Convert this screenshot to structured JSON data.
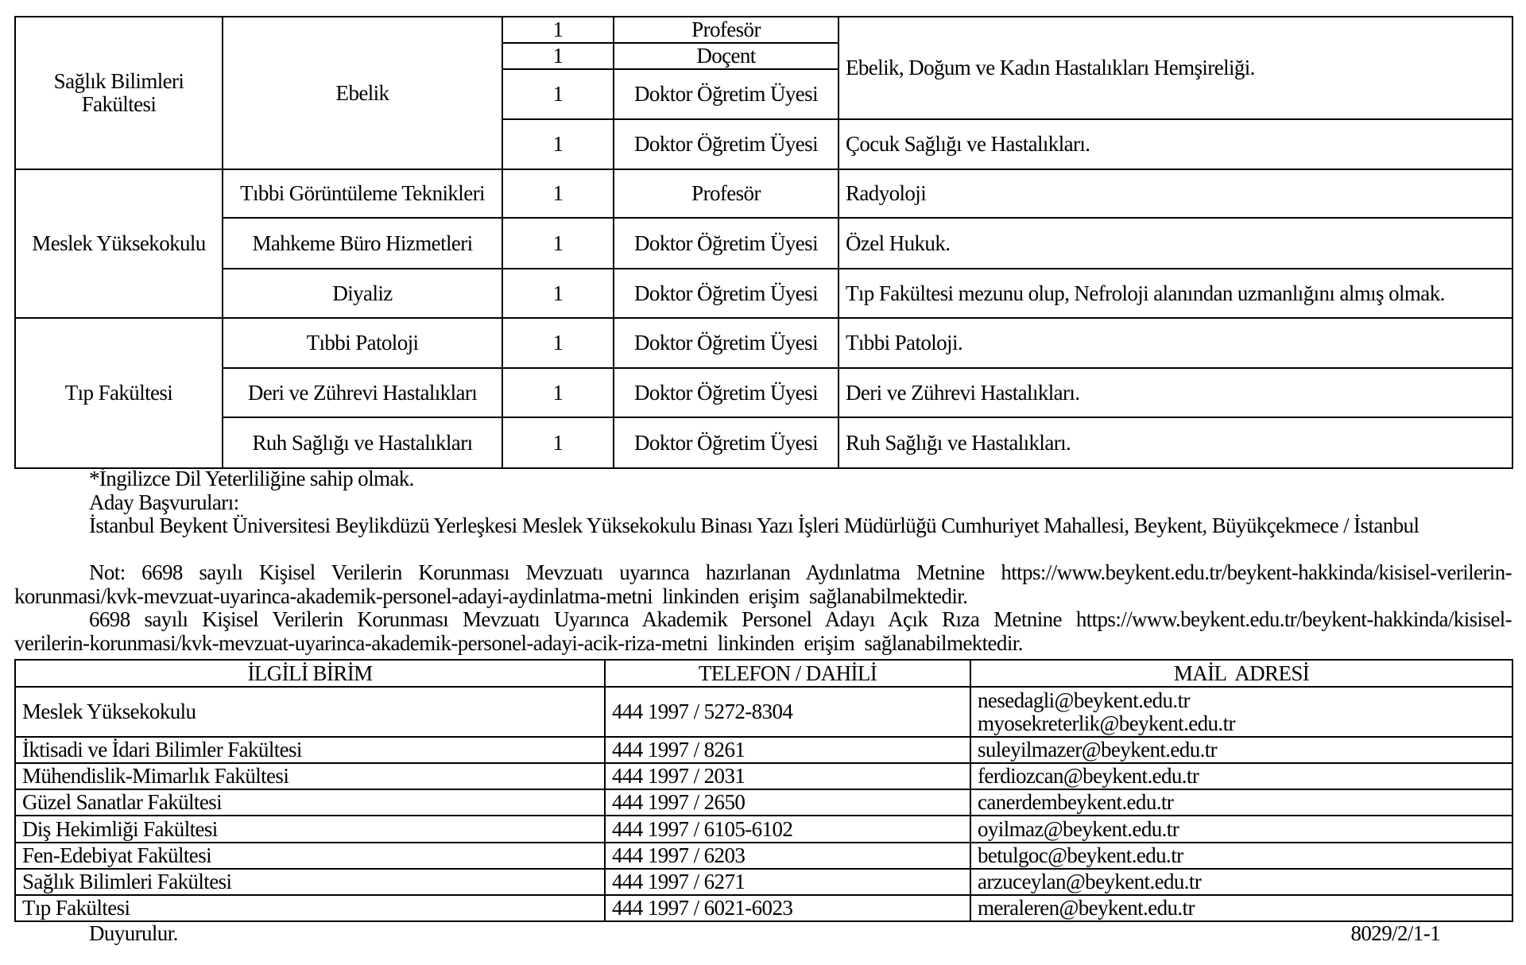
{
  "positions_table": {
    "groups": [
      {
        "faculty": "Sağlık Bilimleri Fakültesi",
        "departments": [
          {
            "name": "Ebelik",
            "rows": [
              {
                "count": "1",
                "title": "Profesör"
              },
              {
                "count": "1",
                "title": "Doçent"
              },
              {
                "count": "1",
                "title": "Doktor Öğretim Üyesi"
              },
              {
                "count": "1",
                "title": "Doktor Öğretim Üyesi"
              }
            ],
            "requirements": [
              "Ebelik, Doğum ve Kadın Hastalıkları Hemşireliği.",
              "Çocuk Sağlığı ve Hastalıkları."
            ]
          }
        ]
      },
      {
        "faculty": "Meslek Yüksekokulu",
        "departments": [
          {
            "name": "Tıbbi Görüntüleme Teknikleri",
            "count": "1",
            "title": "Profesör",
            "requirement": "Radyoloji"
          },
          {
            "name": "Mahkeme Büro Hizmetleri",
            "count": "1",
            "title": "Doktor Öğretim Üyesi",
            "requirement": "Özel Hukuk."
          },
          {
            "name": "Diyaliz",
            "count": "1",
            "title": "Doktor Öğretim Üyesi",
            "requirement": "Tıp Fakültesi mezunu olup, Nefroloji alanından uzmanlığını almış olmak."
          }
        ]
      },
      {
        "faculty": "Tıp Fakültesi",
        "departments": [
          {
            "name": "Tıbbi Patoloji",
            "count": "1",
            "title": "Doktor Öğretim Üyesi",
            "requirement": "Tıbbi Patoloji."
          },
          {
            "name": "Deri ve Zührevi Hastalıkları",
            "count": "1",
            "title": "Doktor Öğretim Üyesi",
            "requirement": "Deri ve Zührevi Hastalıkları."
          },
          {
            "name": "Ruh Sağlığı ve Hastalıkları",
            "count": "1",
            "title": "Doktor Öğretim Üyesi",
            "requirement": "Ruh Sağlığı ve Hastalıkları."
          }
        ]
      }
    ]
  },
  "notes": {
    "language": "*İngilizce Dil Yeterliliğine sahip olmak.",
    "applications_label": "Aday Başvuruları:",
    "address": "İstanbul Beykent Üniversitesi Beylikdüzü Yerleşkesi Meslek Yüksekokulu Binası Yazı İşleri Müdürlüğü Cumhuriyet Mahallesi, Beykent, Büyükçekmece / İstanbul",
    "note1": "Not: 6698 sayılı Kişisel Verilerin Korunması Mevzuatı uyarınca hazırlanan Aydınlatma Metnine https://www.beykent.edu.tr/beykent-hakkinda/kisisel-verilerin-korunmasi/kvk-mevzuat-uyarinca-akademik-personel-adayi-aydinlatma-metni linkinden erişim sağlanabilmektedir.",
    "note2": "6698 sayılı Kişisel Verilerin Korunması Mevzuatı Uyarınca Akademik Personel Adayı Açık Rıza Metnine https://www.beykent.edu.tr/beykent-hakkinda/kisisel-verilerin-korunmasi/kvk-mevzuat-uyarinca-akademik-personel-adayi-acik-riza-metni linkinden erişim sağlanabilmektedir."
  },
  "contacts_table": {
    "headers": [
      "İLGİLİ BİRİM",
      "TELEFON / DAHİLİ",
      "MAİL  ADRESİ"
    ],
    "rows": [
      {
        "unit": "Meslek Yüksekokulu",
        "phone": "444 1997 / 5272-8304",
        "mail": "nesedagli@beykent.edu.tr",
        "mail2": "myosekreterlik@beykent.edu.tr"
      },
      {
        "unit": "İktisadi ve İdari Bilimler Fakültesi",
        "phone": "444 1997 / 8261",
        "mail": "suleyilmazer@beykent.edu.tr"
      },
      {
        "unit": "Mühendislik-Mimarlık Fakültesi",
        "phone": "444 1997 / 2031",
        "mail": "ferdiozcan@beykent.edu.tr"
      },
      {
        "unit": "Güzel Sanatlar Fakültesi",
        "phone": "444 1997 / 2650",
        "mail": "canerdembeykent.edu.tr"
      },
      {
        "unit": "Diş Hekimliği Fakültesi",
        "phone": "444 1997 / 6105-6102",
        "mail": "oyilmaz@beykent.edu.tr"
      },
      {
        "unit": "Fen-Edebiyat Fakültesi",
        "phone": "444 1997 / 6203",
        "mail": "betulgoc@beykent.edu.tr"
      },
      {
        "unit": "Sağlık Bilimleri Fakültesi",
        "phone": "444 1997 / 6271",
        "mail": "arzuceylan@beykent.edu.tr"
      },
      {
        "unit": "Tıp Fakültesi",
        "phone": "444 1997 / 6021-6023",
        "mail": "meraleren@beykent.edu.tr"
      }
    ]
  },
  "footer": {
    "announcement": "Duyurulur.",
    "reference": "8029/2/1-1"
  }
}
